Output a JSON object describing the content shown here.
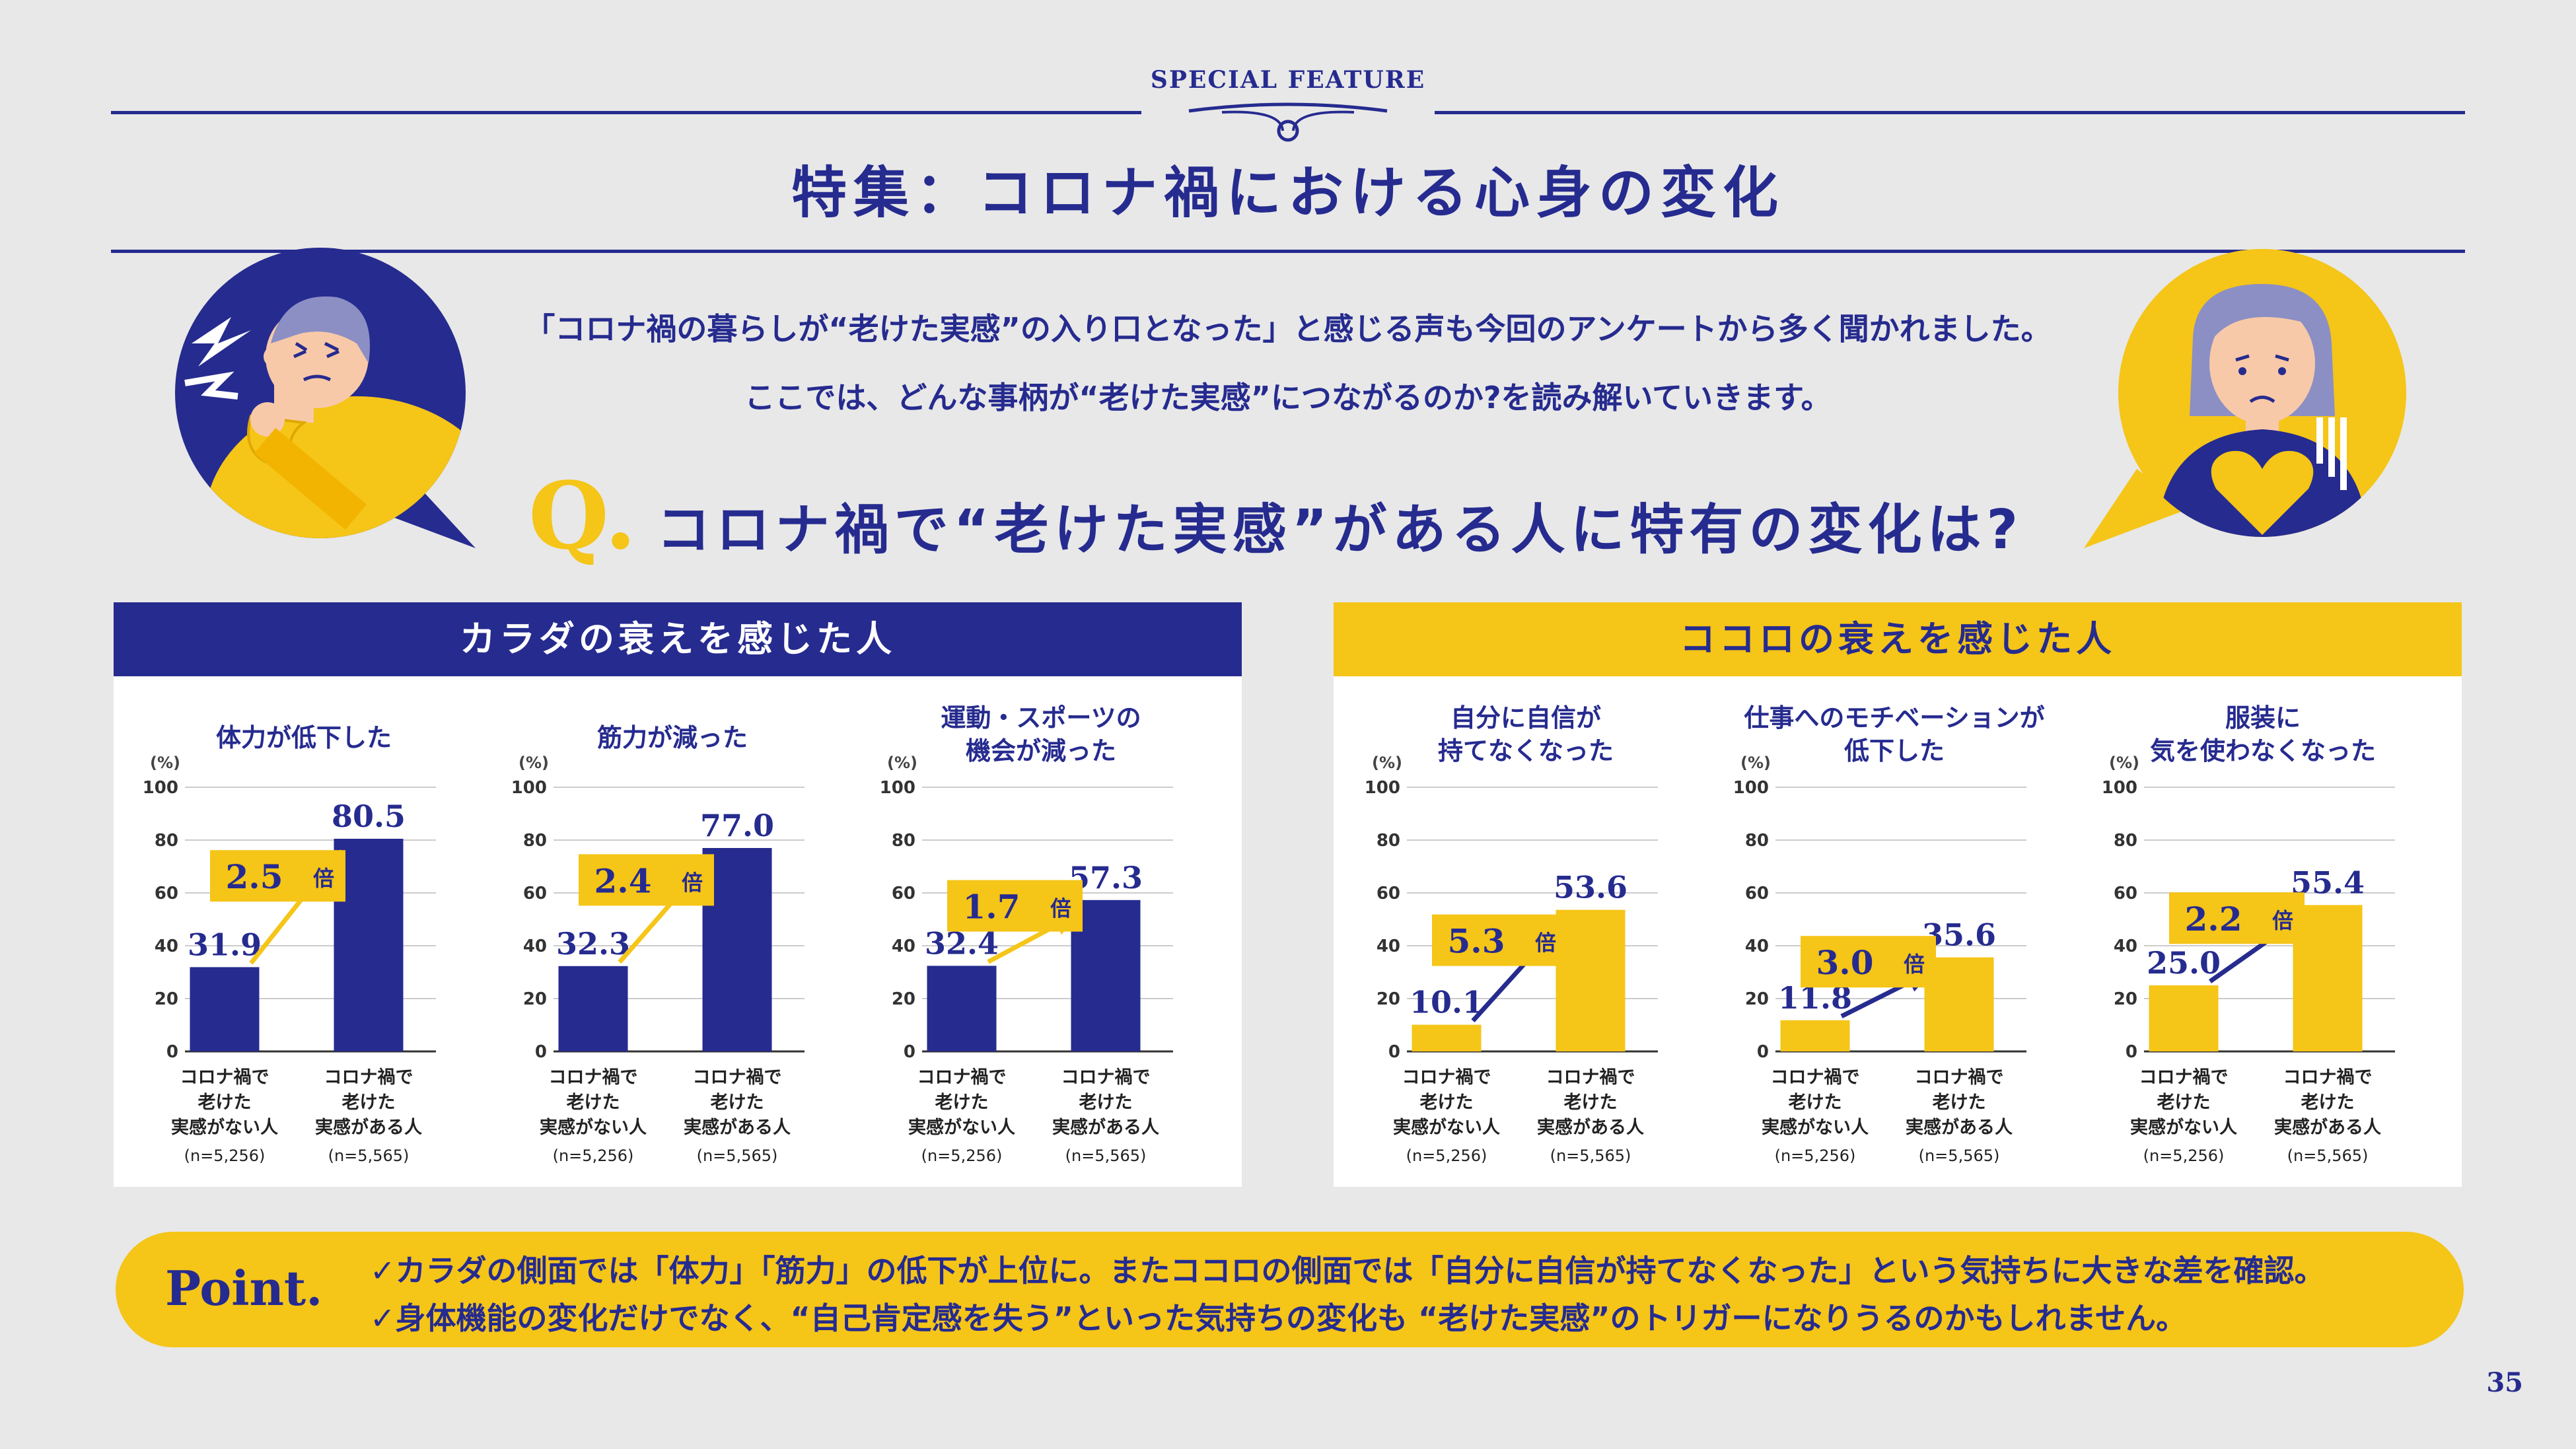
{
  "header": {
    "feature_label": "SPECIAL FEATURE",
    "title": "特集：コロナ禍における心身の変化"
  },
  "intro": {
    "line1": "「コロナ禍の暮らしが“老けた実感”の入り口となった」と感じる声も今回のアンケートから多く聞かれました。",
    "line2": "ここでは、どんな事柄が“老けた実感”につながるのか?を読み解いていきます。"
  },
  "question": {
    "mark": "Q.",
    "text": "コロナ禍で“老けた実感”がある人に特有の変化は?"
  },
  "panels": {
    "body": {
      "title": "カラダの衰えを感じた人"
    },
    "mind": {
      "title": "ココロの衰えを感じた人"
    }
  },
  "colors": {
    "navy": "#262b8f",
    "yellow": "#f5c518",
    "bg": "#e8e8e8"
  },
  "chart_common": {
    "unit": "(%)",
    "ylim": [
      0,
      100
    ],
    "yticks": [
      "0",
      "20",
      "40",
      "60",
      "80",
      "100"
    ],
    "multiplier_suffix": "倍",
    "cat_a": [
      "コロナ禍で",
      "老けた",
      "実感がない人",
      "(n=5,256)"
    ],
    "cat_b": [
      "コロナ禍で",
      "老けた",
      "実感がある人",
      "(n=5,565)"
    ]
  },
  "chart_data": [
    {
      "type": "bar",
      "group": "body",
      "title": [
        "体力が低下した"
      ],
      "categories": [
        "コロナ禍で老けた実感がない人 (n=5,256)",
        "コロナ禍で老けた実感がある人 (n=5,565)"
      ],
      "values": [
        31.9,
        80.5
      ],
      "labels": [
        "31.9",
        "80.5"
      ],
      "multiplier": "2.5",
      "ylim": [
        0,
        100
      ],
      "ylabel": "(%)"
    },
    {
      "type": "bar",
      "group": "body",
      "title": [
        "筋力が減った"
      ],
      "categories": [
        "コロナ禍で老けた実感がない人 (n=5,256)",
        "コロナ禍で老けた実感がある人 (n=5,565)"
      ],
      "values": [
        32.3,
        77.0
      ],
      "labels": [
        "32.3",
        "77.0"
      ],
      "multiplier": "2.4",
      "ylim": [
        0,
        100
      ],
      "ylabel": "(%)"
    },
    {
      "type": "bar",
      "group": "body",
      "title": [
        "運動・スポーツの",
        "機会が減った"
      ],
      "categories": [
        "コロナ禍で老けた実感がない人 (n=5,256)",
        "コロナ禍で老けた実感がある人 (n=5,565)"
      ],
      "values": [
        32.4,
        57.3
      ],
      "labels": [
        "32.4",
        "57.3"
      ],
      "multiplier": "1.7",
      "ylim": [
        0,
        100
      ],
      "ylabel": "(%)"
    },
    {
      "type": "bar",
      "group": "mind",
      "title": [
        "自分に自信が",
        "持てなくなった"
      ],
      "categories": [
        "コロナ禍で老けた実感がない人 (n=5,256)",
        "コロナ禍で老けた実感がある人 (n=5,565)"
      ],
      "values": [
        10.1,
        53.6
      ],
      "labels": [
        "10.1",
        "53.6"
      ],
      "multiplier": "5.3",
      "ylim": [
        0,
        100
      ],
      "ylabel": "(%)"
    },
    {
      "type": "bar",
      "group": "mind",
      "title": [
        "仕事へのモチベーションが",
        "低下した"
      ],
      "categories": [
        "コロナ禍で老けた実感がない人 (n=5,256)",
        "コロナ禍で老けた実感がある人 (n=5,565)"
      ],
      "values": [
        11.8,
        35.6
      ],
      "labels": [
        "11.8",
        "35.6"
      ],
      "multiplier": "3.0",
      "ylim": [
        0,
        100
      ],
      "ylabel": "(%)"
    },
    {
      "type": "bar",
      "group": "mind",
      "title": [
        "服装に",
        "気を使わなくなった"
      ],
      "categories": [
        "コロナ禍で老けた実感がない人 (n=5,256)",
        "コロナ禍で老けた実感がある人 (n=5,565)"
      ],
      "values": [
        25.0,
        55.4
      ],
      "labels": [
        "25.0",
        "55.4"
      ],
      "multiplier": "2.2",
      "ylim": [
        0,
        100
      ],
      "ylabel": "(%)"
    }
  ],
  "point": {
    "label": "Point.",
    "line1": "✓カラダの側面では「体力」「筋力」の低下が上位に。またココロの側面では「自分に自信が持てなくなった」という気持ちに大きな差を確認。",
    "line2": "✓身体機能の変化だけでなく、“自己肯定感を失う”といった気持ちの変化も “老けた実感”のトリガーになりうるのかもしれません。"
  },
  "page_number": "35"
}
